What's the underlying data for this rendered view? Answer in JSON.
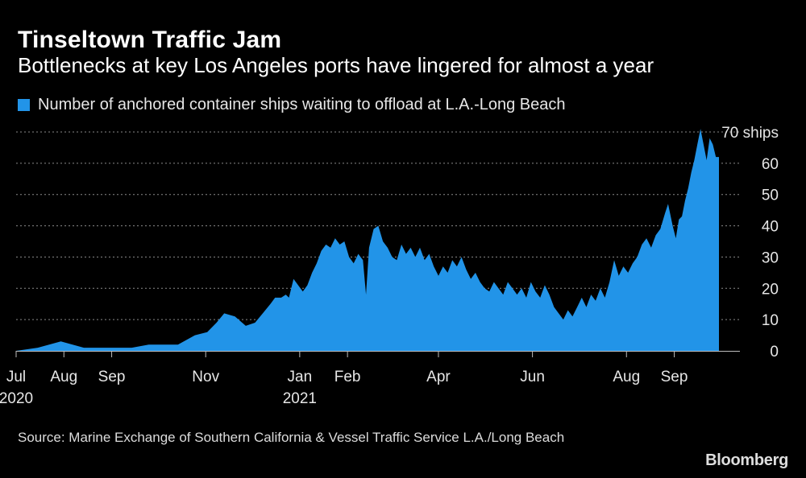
{
  "header": {
    "title": "Tinseltown Traffic Jam",
    "subtitle": "Bottlenecks at key Los Angeles ports have lingered for almost a year"
  },
  "legend": {
    "label": "Number of anchored container ships waiting to offload at L.A.-Long Beach",
    "color": "#2294E8"
  },
  "footer": {
    "source": "Source: Marine Exchange of Southern California & Vessel Traffic Service L.A./Long Beach",
    "brand": "Bloomberg"
  },
  "chart_data": {
    "type": "area",
    "title": "Tinseltown Traffic Jam",
    "series_name": "Number of anchored container ships waiting to offload at L.A.-Long Beach",
    "color": "#2294E8",
    "ylim": [
      0,
      70
    ],
    "yticks": [
      0,
      10,
      20,
      30,
      40,
      50,
      60
    ],
    "top_label": "70 ships",
    "grid": true,
    "x_start": "2020-07-01",
    "x_end": "2021-09-30",
    "x_ticks": [
      {
        "date": "2020-07-01",
        "label": "Jul",
        "year": "2020"
      },
      {
        "date": "2020-08-01",
        "label": "Aug",
        "year": ""
      },
      {
        "date": "2020-09-01",
        "label": "Sep",
        "year": ""
      },
      {
        "date": "2020-11-01",
        "label": "Nov",
        "year": ""
      },
      {
        "date": "2021-01-01",
        "label": "Jan",
        "year": "2021"
      },
      {
        "date": "2021-02-01",
        "label": "Feb",
        "year": ""
      },
      {
        "date": "2021-04-01",
        "label": "Apr",
        "year": ""
      },
      {
        "date": "2021-06-01",
        "label": "Jun",
        "year": ""
      },
      {
        "date": "2021-08-01",
        "label": "Aug",
        "year": ""
      },
      {
        "date": "2021-09-01",
        "label": "Sep",
        "year": ""
      }
    ],
    "points": [
      [
        "2020-07-01",
        0
      ],
      [
        "2020-07-15",
        1
      ],
      [
        "2020-07-30",
        3
      ],
      [
        "2020-08-14",
        1
      ],
      [
        "2020-08-30",
        1
      ],
      [
        "2020-09-14",
        1
      ],
      [
        "2020-09-25",
        2
      ],
      [
        "2020-10-14",
        2
      ],
      [
        "2020-10-25",
        5
      ],
      [
        "2020-11-02",
        6
      ],
      [
        "2020-11-08",
        9
      ],
      [
        "2020-11-13",
        12
      ],
      [
        "2020-11-20",
        11
      ],
      [
        "2020-11-27",
        8
      ],
      [
        "2020-12-03",
        9
      ],
      [
        "2020-12-08",
        12
      ],
      [
        "2020-12-13",
        15
      ],
      [
        "2020-12-16",
        17
      ],
      [
        "2020-12-20",
        17
      ],
      [
        "2020-12-23",
        18
      ],
      [
        "2020-12-25",
        17
      ],
      [
        "2020-12-28",
        23
      ],
      [
        "2020-12-31",
        21
      ],
      [
        "2021-01-03",
        19
      ],
      [
        "2021-01-06",
        21
      ],
      [
        "2021-01-09",
        25
      ],
      [
        "2021-01-12",
        28
      ],
      [
        "2021-01-15",
        32
      ],
      [
        "2021-01-18",
        34
      ],
      [
        "2021-01-21",
        33
      ],
      [
        "2021-01-24",
        36
      ],
      [
        "2021-01-27",
        34
      ],
      [
        "2021-01-30",
        35
      ],
      [
        "2021-02-02",
        30
      ],
      [
        "2021-02-05",
        28
      ],
      [
        "2021-02-08",
        31
      ],
      [
        "2021-02-11",
        29
      ],
      [
        "2021-02-13",
        18
      ],
      [
        "2021-02-15",
        33
      ],
      [
        "2021-02-18",
        39
      ],
      [
        "2021-02-21",
        40
      ],
      [
        "2021-02-24",
        35
      ],
      [
        "2021-02-27",
        33
      ],
      [
        "2021-03-02",
        30
      ],
      [
        "2021-03-05",
        29
      ],
      [
        "2021-03-08",
        34
      ],
      [
        "2021-03-11",
        31
      ],
      [
        "2021-03-14",
        33
      ],
      [
        "2021-03-17",
        30
      ],
      [
        "2021-03-20",
        33
      ],
      [
        "2021-03-23",
        29
      ],
      [
        "2021-03-26",
        31
      ],
      [
        "2021-03-29",
        27
      ],
      [
        "2021-04-01",
        24
      ],
      [
        "2021-04-04",
        27
      ],
      [
        "2021-04-07",
        25
      ],
      [
        "2021-04-10",
        29
      ],
      [
        "2021-04-13",
        27
      ],
      [
        "2021-04-16",
        30
      ],
      [
        "2021-04-19",
        26
      ],
      [
        "2021-04-22",
        23
      ],
      [
        "2021-04-25",
        25
      ],
      [
        "2021-04-28",
        22
      ],
      [
        "2021-05-01",
        20
      ],
      [
        "2021-05-04",
        19
      ],
      [
        "2021-05-07",
        22
      ],
      [
        "2021-05-10",
        20
      ],
      [
        "2021-05-13",
        18
      ],
      [
        "2021-05-16",
        22
      ],
      [
        "2021-05-19",
        20
      ],
      [
        "2021-05-22",
        18
      ],
      [
        "2021-05-25",
        20
      ],
      [
        "2021-05-28",
        17
      ],
      [
        "2021-05-31",
        22
      ],
      [
        "2021-06-03",
        19
      ],
      [
        "2021-06-06",
        17
      ],
      [
        "2021-06-09",
        21
      ],
      [
        "2021-06-12",
        18
      ],
      [
        "2021-06-15",
        14
      ],
      [
        "2021-06-18",
        12
      ],
      [
        "2021-06-21",
        10
      ],
      [
        "2021-06-24",
        13
      ],
      [
        "2021-06-27",
        11
      ],
      [
        "2021-06-30",
        14
      ],
      [
        "2021-07-03",
        17
      ],
      [
        "2021-07-06",
        14
      ],
      [
        "2021-07-09",
        18
      ],
      [
        "2021-07-12",
        16
      ],
      [
        "2021-07-15",
        20
      ],
      [
        "2021-07-18",
        17
      ],
      [
        "2021-07-21",
        22
      ],
      [
        "2021-07-24",
        29
      ],
      [
        "2021-07-27",
        24
      ],
      [
        "2021-07-30",
        27
      ],
      [
        "2021-08-02",
        25
      ],
      [
        "2021-08-05",
        28
      ],
      [
        "2021-08-08",
        30
      ],
      [
        "2021-08-11",
        34
      ],
      [
        "2021-08-14",
        36
      ],
      [
        "2021-08-17",
        33
      ],
      [
        "2021-08-20",
        37
      ],
      [
        "2021-08-23",
        39
      ],
      [
        "2021-08-26",
        44
      ],
      [
        "2021-08-28",
        47
      ],
      [
        "2021-08-31",
        40
      ],
      [
        "2021-09-02",
        36
      ],
      [
        "2021-09-04",
        42
      ],
      [
        "2021-09-06",
        43
      ],
      [
        "2021-09-08",
        48
      ],
      [
        "2021-09-10",
        52
      ],
      [
        "2021-09-12",
        57
      ],
      [
        "2021-09-14",
        61
      ],
      [
        "2021-09-16",
        66
      ],
      [
        "2021-09-18",
        71
      ],
      [
        "2021-09-20",
        66
      ],
      [
        "2021-09-22",
        61
      ],
      [
        "2021-09-24",
        68
      ],
      [
        "2021-09-26",
        66
      ],
      [
        "2021-09-28",
        62
      ],
      [
        "2021-09-30",
        62
      ]
    ]
  }
}
